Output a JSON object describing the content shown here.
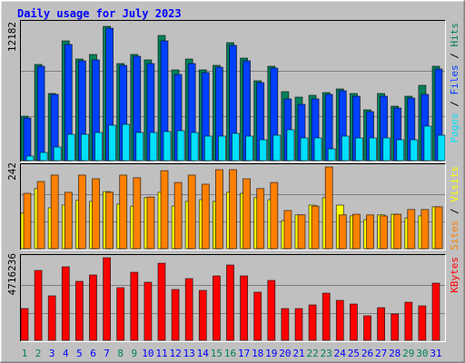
{
  "title": "Daily usage for July 2023",
  "legend_separator": " / ",
  "categories": [
    "1",
    "2",
    "3",
    "4",
    "5",
    "6",
    "7",
    "8",
    "9",
    "10",
    "11",
    "12",
    "13",
    "14",
    "15",
    "16",
    "17",
    "18",
    "19",
    "20",
    "21",
    "22",
    "23",
    "24",
    "25",
    "26",
    "27",
    "28",
    "29",
    "30",
    "31"
  ],
  "category_colors": [
    "#00805c",
    "#00805c",
    "#0000ff",
    "#0000ff",
    "#0000ff",
    "#0000ff",
    "#0000ff",
    "#00805c",
    "#00805c",
    "#0000ff",
    "#0000ff",
    "#0000ff",
    "#0000ff",
    "#0000ff",
    "#00805c",
    "#00805c",
    "#0000ff",
    "#0000ff",
    "#0000ff",
    "#0000ff",
    "#0000ff",
    "#00805c",
    "#00805c",
    "#0000ff",
    "#0000ff",
    "#0000ff",
    "#0000ff",
    "#0000ff",
    "#00805c",
    "#00805c",
    "#0000ff"
  ],
  "chart_data": [
    {
      "type": "bar",
      "ylim": [
        0,
        12182
      ],
      "yticks": [
        12182
      ],
      "series": [
        {
          "name": "Pages",
          "color": "#00e0ff",
          "values": [
            412,
            741,
            1235,
            2387,
            2387,
            2551,
            3210,
            3292,
            2551,
            2551,
            2634,
            2716,
            2551,
            2222,
            2222,
            2469,
            2222,
            1893,
            2304,
            2798,
            2058,
            2058,
            1070,
            2222,
            2058,
            2058,
            2058,
            1893,
            1893,
            3128,
            2304
          ]
        },
        {
          "name": "Files",
          "color": "#0040ff",
          "values": [
            3868,
            8559,
            6008,
            10534,
            9053,
            9135,
            12016,
            8642,
            9465,
            8806,
            10864,
            7819,
            8806,
            7983,
            8477,
            10452,
            9053,
            7078,
            8395,
            5596,
            5103,
            5596,
            6008,
            6337,
            5843,
            4444,
            5843,
            4773,
            5679,
            6008,
            8312
          ]
        },
        {
          "name": "Hits",
          "color": "#00805c",
          "values": [
            4033,
            8724,
            6090,
            10864,
            9218,
            9630,
            12182,
            8806,
            9630,
            9136,
            11357,
            8230,
            9218,
            8230,
            8642,
            10699,
            9300,
            7242,
            8559,
            6255,
            5761,
            5926,
            6173,
            6502,
            6090,
            4609,
            6090,
            4938,
            5843,
            6831,
            8559
          ]
        }
      ]
    },
    {
      "type": "bar",
      "ylim": [
        0,
        242
      ],
      "yticks": [
        242
      ],
      "series": [
        {
          "name": "Sites",
          "color": "#ff8000",
          "values": [
            164,
            199,
            218,
            167,
            218,
            207,
            167,
            218,
            210,
            153,
            231,
            196,
            218,
            191,
            234,
            234,
            207,
            178,
            196,
            113,
            100,
            126,
            242,
            100,
            102,
            100,
            97,
            102,
            116,
            116,
            124
          ]
        },
        {
          "name": "Visits",
          "color": "#ffff00",
          "values": [
            105,
            178,
            121,
            129,
            143,
            140,
            169,
            132,
            126,
            151,
            167,
            126,
            140,
            145,
            140,
            167,
            164,
            151,
            145,
            83,
            100,
            129,
            151,
            129,
            97,
            86,
            100,
            102,
            91,
            97,
            124
          ]
        }
      ]
    },
    {
      "type": "bar",
      "ylim": [
        0,
        4716236
      ],
      "yticks": [
        4716236
      ],
      "series": [
        {
          "name": "KBytes",
          "color": "#ff0000",
          "values": [
            1813945,
            3990679,
            2539523,
            4197987,
            3368755,
            3731544,
            4716236,
            3005966,
            3887025,
            3316928,
            4405295,
            2902312,
            3524236,
            2850485,
            3679717,
            4301641,
            3679717,
            2746831,
            3420582,
            1813945,
            1813945,
            2021253,
            2695004,
            2280388,
            2073080,
            1399329,
            1865772,
            1502983,
            2176734,
            1969426,
            3265101
          ]
        }
      ]
    }
  ]
}
